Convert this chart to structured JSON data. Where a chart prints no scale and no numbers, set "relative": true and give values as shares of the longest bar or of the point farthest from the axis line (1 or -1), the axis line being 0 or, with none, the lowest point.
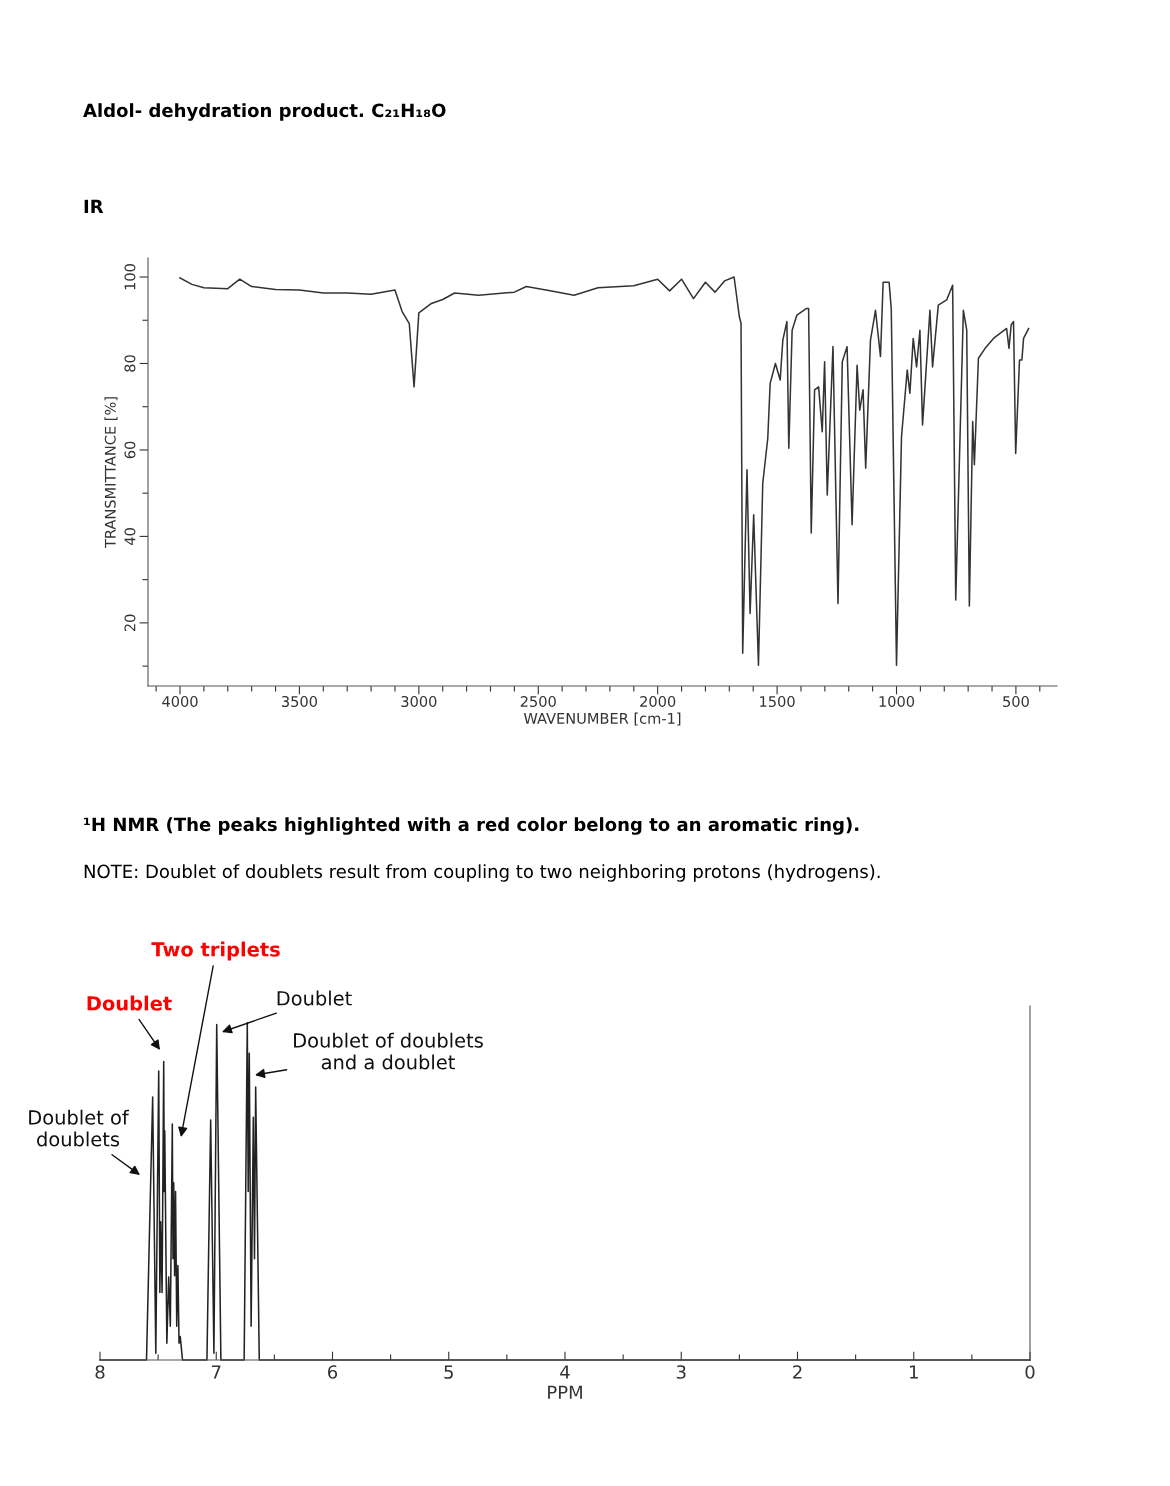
{
  "chart_data": [
    {
      "type": "line",
      "title": "Aldol- dehydration product. C₂₁H₁₈O",
      "subtitle": "IR",
      "xlabel": "WAVENUMBER [cm-1]",
      "ylabel": "TRANSMITTANCE [%]",
      "xlim": [
        4134,
        328
      ],
      "ylim": [
        5.4,
        104.4
      ],
      "xticks": [
        {
          "value": 4100,
          "label": null
        },
        4000,
        {
          "value": 3900,
          "label": null
        },
        {
          "value": 3800,
          "label": null
        },
        {
          "value": 3700,
          "label": null
        },
        {
          "value": 3600,
          "label": null
        },
        3500,
        {
          "value": 3400,
          "label": null
        },
        {
          "value": 3300,
          "label": null
        },
        {
          "value": 3200,
          "label": null
        },
        {
          "value": 3100,
          "label": null
        },
        3000,
        {
          "value": 2900,
          "label": null
        },
        {
          "value": 2800,
          "label": null
        },
        {
          "value": 2700,
          "label": null
        },
        {
          "value": 2600,
          "label": null
        },
        2500,
        {
          "value": 2400,
          "label": null
        },
        {
          "value": 2300,
          "label": null
        },
        {
          "value": 2200,
          "label": null
        },
        {
          "value": 2100,
          "label": null
        },
        2000,
        {
          "value": 1900,
          "label": null
        },
        {
          "value": 1800,
          "label": null
        },
        {
          "value": 1700,
          "label": null
        },
        {
          "value": 1600,
          "label": null
        },
        1500,
        {
          "value": 1400,
          "label": null
        },
        {
          "value": 1300,
          "label": null
        },
        {
          "value": 1200,
          "label": null
        },
        {
          "value": 1100,
          "label": null
        },
        1000,
        {
          "value": 900,
          "label": null
        },
        {
          "value": 800,
          "label": null
        },
        {
          "value": 700,
          "label": null
        },
        {
          "value": 600,
          "label": null
        },
        500,
        {
          "value": 400,
          "label": null
        }
      ],
      "yticks": [
        {
          "value": 10,
          "label": null
        },
        20,
        {
          "value": 30,
          "label": null
        },
        40,
        {
          "value": 50,
          "label": null
        },
        60,
        {
          "value": 70,
          "label": null
        },
        80,
        {
          "value": 90,
          "label": null
        },
        100
      ],
      "series": [
        {
          "color": "#333333",
          "x": [
            4000,
            3950,
            3900,
            3800,
            3750,
            3700,
            3600,
            3500,
            3400,
            3300,
            3200,
            3100,
            3070,
            3040,
            3020,
            3000,
            2950,
            2900,
            2850,
            2750,
            2600,
            2550,
            2450,
            2350,
            2250,
            2100,
            2000,
            1950,
            1900,
            1850,
            1800,
            1760,
            1720,
            1680,
            1658,
            1651,
            1644,
            1626,
            1613,
            1598,
            1578,
            1560,
            1539,
            1529,
            1507,
            1487,
            1476,
            1459,
            1451,
            1437,
            1417,
            1378,
            1368,
            1357,
            1343,
            1326,
            1311,
            1301,
            1290,
            1266,
            1245,
            1227,
            1207,
            1186,
            1165,
            1154,
            1140,
            1129,
            1109,
            1088,
            1067,
            1056,
            1031,
            1022,
            1000,
            979,
            955,
            944,
            930,
            916,
            902,
            891,
            860,
            849,
            825,
            790,
            765,
            752,
            720,
            706,
            695,
            681,
            674,
            657,
            629,
            594,
            539,
            529,
            520,
            510,
            501,
            485,
            475,
            468,
            447
          ],
          "values": [
            99.8,
            98.3,
            97.5,
            97.3,
            99.5,
            97.8,
            97.1,
            97,
            96.3,
            96.3,
            96,
            97,
            92,
            89.2,
            74.6,
            91.7,
            93.8,
            94.8,
            96.3,
            95.8,
            96.5,
            97.8,
            96.8,
            95.8,
            97.5,
            98,
            99.5,
            96.8,
            99.5,
            95,
            98.8,
            96.5,
            99.1,
            100,
            90.8,
            89.3,
            13,
            55.4,
            22.2,
            45,
            10.2,
            52.3,
            62.7,
            75.4,
            80,
            76.2,
            85.4,
            89.7,
            60.4,
            87.7,
            91.2,
            92.7,
            92.7,
            40.8,
            73.9,
            74.6,
            64.2,
            80.4,
            49.6,
            83.9,
            24.5,
            80.4,
            83.9,
            42.7,
            79.6,
            69.2,
            73.9,
            55.8,
            85.4,
            92.3,
            81.6,
            98.8,
            98.8,
            92.7,
            10.2,
            63.1,
            78.5,
            73.1,
            85.8,
            79.2,
            87.7,
            65.8,
            92.3,
            79.2,
            93.5,
            94.7,
            98.1,
            25.3,
            92.3,
            87.7,
            23.9,
            66.6,
            56.6,
            81.2,
            83.5,
            85.8,
            88.1,
            83.5,
            88.9,
            89.7,
            59.2,
            80.8,
            80.8,
            85.8,
            88.1
          ]
        }
      ]
    },
    {
      "type": "line",
      "title": "¹H NMR (The peaks highlighted with a red color belong to an aromatic ring).",
      "subtitle": "NOTE: Doublet of doublets result from coupling to two neighboring protons (hydrogens).",
      "xlabel": "PPM",
      "relative": true,
      "xlim": [
        8,
        0
      ],
      "xticks": [
        8,
        {
          "value": 7.5,
          "label": null
        },
        7,
        {
          "value": 6.5,
          "label": null
        },
        6,
        {
          "value": 5.5,
          "label": null
        },
        5,
        {
          "value": 4.5,
          "label": null
        },
        4,
        {
          "value": 3.5,
          "label": null
        },
        3,
        {
          "value": 2.5,
          "label": null
        },
        2,
        {
          "value": 1.5,
          "label": null
        },
        1,
        {
          "value": 0.5,
          "label": null
        },
        0
      ],
      "annotations": [
        "Two triplets",
        "Doublet",
        "Doublet",
        "Doublet of doublets\nand a doublet",
        "Doublet of\ndoublets"
      ],
      "series": [
        {
          "color": "#222222",
          "x": [
            8,
            7.6,
            7.547,
            7.52,
            7.495,
            7.485,
            7.478,
            7.466,
            7.452,
            7.447,
            7.443,
            7.425,
            7.409,
            7.395,
            7.378,
            7.372,
            7.366,
            7.358,
            7.35,
            7.34,
            7.33,
            7.32,
            7.31,
            7.29,
            7.08,
            7.048,
            7.02,
            6.996,
            6.96,
            6.76,
            6.733,
            6.725,
            6.716,
            6.7,
            6.681,
            6.671,
            6.661,
            6.63,
            0
          ],
          "values": [
            0,
            0,
            0.78,
            0.02,
            0.857,
            0.2,
            0.41,
            0.2,
            0.885,
            0.5,
            0.68,
            0.05,
            0.246,
            0.1,
            0.7,
            0.3,
            0.526,
            0.25,
            0.5,
            0.1,
            0.28,
            0.05,
            0.07,
            0,
            0,
            0.712,
            0.02,
            0.995,
            0,
            0,
            1,
            0.5,
            0.91,
            0.1,
            0.72,
            0.3,
            0.81,
            0,
            0
          ]
        }
      ]
    }
  ]
}
